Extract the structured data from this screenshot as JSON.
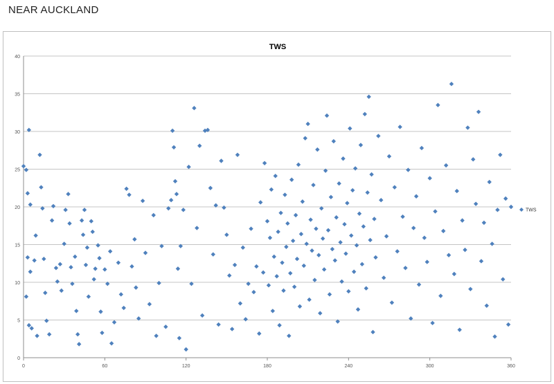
{
  "page": {
    "title": "NEAR AUCKLAND"
  },
  "chart_data": {
    "type": "scatter",
    "title": "TWS",
    "xlabel": "",
    "ylabel": "",
    "xlim": [
      0,
      360
    ],
    "ylim": [
      0,
      40
    ],
    "xticks": [
      0,
      60,
      120,
      180,
      240,
      300,
      360
    ],
    "yticks": [
      0,
      5,
      10,
      15,
      20,
      25,
      30,
      35,
      40
    ],
    "grid": "horizontal",
    "legend": "right",
    "marker": "diamond",
    "series_color": "#4f81bd",
    "series": [
      {
        "name": "TWS",
        "points": [
          [
            0,
            25.4
          ],
          [
            2,
            24.9
          ],
          [
            3,
            21.8
          ],
          [
            4,
            30.2
          ],
          [
            5,
            20.3
          ],
          [
            3,
            13.3
          ],
          [
            2,
            8.1
          ],
          [
            4,
            4.3
          ],
          [
            6,
            3.9
          ],
          [
            5,
            11.4
          ],
          [
            8,
            12.9
          ],
          [
            9,
            16.2
          ],
          [
            12,
            26.9
          ],
          [
            13,
            22.6
          ],
          [
            14,
            19.8
          ],
          [
            15,
            13.1
          ],
          [
            16,
            8.6
          ],
          [
            17,
            4.9
          ],
          [
            19,
            3.1
          ],
          [
            10,
            2.9
          ],
          [
            21,
            18.2
          ],
          [
            22,
            20.1
          ],
          [
            24,
            11.9
          ],
          [
            25,
            10.1
          ],
          [
            27,
            12.4
          ],
          [
            28,
            8.9
          ],
          [
            30,
            15.1
          ],
          [
            31,
            19.6
          ],
          [
            33,
            21.7
          ],
          [
            34,
            17.8
          ],
          [
            35,
            12.0
          ],
          [
            36,
            9.8
          ],
          [
            38,
            13.4
          ],
          [
            39,
            6.2
          ],
          [
            40,
            3.1
          ],
          [
            41,
            1.8
          ],
          [
            43,
            18.2
          ],
          [
            44,
            16.3
          ],
          [
            45,
            19.6
          ],
          [
            46,
            12.3
          ],
          [
            47,
            14.6
          ],
          [
            48,
            8.1
          ],
          [
            50,
            18.1
          ],
          [
            51,
            16.7
          ],
          [
            52,
            10.4
          ],
          [
            53,
            11.8
          ],
          [
            55,
            14.9
          ],
          [
            56,
            13.2
          ],
          [
            57,
            6.1
          ],
          [
            58,
            3.3
          ],
          [
            60,
            11.7
          ],
          [
            62,
            9.8
          ],
          [
            64,
            14.1
          ],
          [
            65,
            1.9
          ],
          [
            67,
            4.7
          ],
          [
            70,
            12.6
          ],
          [
            72,
            8.4
          ],
          [
            74,
            6.6
          ],
          [
            76,
            22.4
          ],
          [
            78,
            21.6
          ],
          [
            80,
            12.1
          ],
          [
            82,
            15.7
          ],
          [
            83,
            9.3
          ],
          [
            85,
            5.2
          ],
          [
            88,
            20.8
          ],
          [
            90,
            13.9
          ],
          [
            93,
            7.1
          ],
          [
            96,
            18.9
          ],
          [
            98,
            2.9
          ],
          [
            100,
            9.9
          ],
          [
            102,
            14.8
          ],
          [
            105,
            4.1
          ],
          [
            107,
            19.8
          ],
          [
            109,
            20.9
          ],
          [
            110,
            30.1
          ],
          [
            111,
            27.9
          ],
          [
            112,
            23.4
          ],
          [
            113,
            21.7
          ],
          [
            114,
            11.8
          ],
          [
            115,
            2.6
          ],
          [
            116,
            14.8
          ],
          [
            118,
            19.6
          ],
          [
            120,
            1.1
          ],
          [
            122,
            25.3
          ],
          [
            124,
            9.8
          ],
          [
            126,
            33.1
          ],
          [
            128,
            17.2
          ],
          [
            130,
            28.1
          ],
          [
            132,
            5.6
          ],
          [
            134,
            30.1
          ],
          [
            136,
            30.2
          ],
          [
            138,
            22.5
          ],
          [
            140,
            13.7
          ],
          [
            142,
            20.2
          ],
          [
            144,
            4.4
          ],
          [
            146,
            26.1
          ],
          [
            148,
            19.9
          ],
          [
            150,
            16.3
          ],
          [
            152,
            10.9
          ],
          [
            154,
            3.8
          ],
          [
            156,
            12.3
          ],
          [
            158,
            26.9
          ],
          [
            160,
            7.2
          ],
          [
            162,
            14.6
          ],
          [
            164,
            5.1
          ],
          [
            166,
            9.8
          ],
          [
            168,
            17.1
          ],
          [
            170,
            8.7
          ],
          [
            172,
            12.1
          ],
          [
            174,
            3.2
          ],
          [
            175,
            20.6
          ],
          [
            177,
            11.3
          ],
          [
            178,
            25.8
          ],
          [
            180,
            18.1
          ],
          [
            181,
            9.6
          ],
          [
            182,
            15.9
          ],
          [
            183,
            22.3
          ],
          [
            184,
            6.2
          ],
          [
            185,
            13.4
          ],
          [
            186,
            24.1
          ],
          [
            187,
            10.8
          ],
          [
            188,
            16.7
          ],
          [
            189,
            4.3
          ],
          [
            190,
            19.2
          ],
          [
            191,
            12.6
          ],
          [
            192,
            8.9
          ],
          [
            193,
            21.6
          ],
          [
            194,
            14.7
          ],
          [
            195,
            17.8
          ],
          [
            196,
            2.9
          ],
          [
            197,
            11.2
          ],
          [
            198,
            23.6
          ],
          [
            199,
            15.5
          ],
          [
            200,
            9.4
          ],
          [
            201,
            18.9
          ],
          [
            202,
            13.1
          ],
          [
            203,
            25.6
          ],
          [
            204,
            6.8
          ],
          [
            205,
            16.4
          ],
          [
            206,
            20.7
          ],
          [
            207,
            12.2
          ],
          [
            208,
            29.1
          ],
          [
            209,
            15.1
          ],
          [
            210,
            31.0
          ],
          [
            211,
            7.7
          ],
          [
            212,
            18.3
          ],
          [
            213,
            14.2
          ],
          [
            214,
            22.9
          ],
          [
            215,
            10.3
          ],
          [
            216,
            17.1
          ],
          [
            217,
            27.6
          ],
          [
            218,
            13.6
          ],
          [
            219,
            5.9
          ],
          [
            220,
            19.8
          ],
          [
            221,
            15.8
          ],
          [
            222,
            11.7
          ],
          [
            223,
            24.8
          ],
          [
            224,
            32.1
          ],
          [
            225,
            16.9
          ],
          [
            226,
            8.4
          ],
          [
            227,
            21.3
          ],
          [
            228,
            14.4
          ],
          [
            229,
            28.7
          ],
          [
            230,
            12.9
          ],
          [
            231,
            18.6
          ],
          [
            232,
            4.8
          ],
          [
            233,
            23.1
          ],
          [
            234,
            15.3
          ],
          [
            235,
            10.1
          ],
          [
            236,
            26.4
          ],
          [
            237,
            17.7
          ],
          [
            238,
            13.8
          ],
          [
            239,
            20.5
          ],
          [
            240,
            8.8
          ],
          [
            241,
            30.4
          ],
          [
            242,
            16.2
          ],
          [
            243,
            22.2
          ],
          [
            244,
            11.4
          ],
          [
            245,
            25.1
          ],
          [
            246,
            14.9
          ],
          [
            247,
            6.4
          ],
          [
            248,
            19.1
          ],
          [
            249,
            28.2
          ],
          [
            250,
            12.4
          ],
          [
            251,
            17.4
          ],
          [
            252,
            32.3
          ],
          [
            253,
            9.2
          ],
          [
            254,
            21.9
          ],
          [
            255,
            34.6
          ],
          [
            256,
            15.6
          ],
          [
            257,
            24.3
          ],
          [
            258,
            3.4
          ],
          [
            259,
            18.4
          ],
          [
            260,
            13.3
          ],
          [
            262,
            29.4
          ],
          [
            264,
            20.9
          ],
          [
            266,
            10.6
          ],
          [
            268,
            16.1
          ],
          [
            270,
            26.7
          ],
          [
            272,
            7.3
          ],
          [
            274,
            22.6
          ],
          [
            276,
            14.1
          ],
          [
            278,
            30.6
          ],
          [
            280,
            18.7
          ],
          [
            282,
            11.9
          ],
          [
            284,
            24.9
          ],
          [
            286,
            5.2
          ],
          [
            288,
            17.2
          ],
          [
            290,
            21.4
          ],
          [
            292,
            9.7
          ],
          [
            294,
            27.8
          ],
          [
            296,
            15.9
          ],
          [
            298,
            12.7
          ],
          [
            300,
            23.8
          ],
          [
            302,
            4.6
          ],
          [
            304,
            19.4
          ],
          [
            306,
            33.5
          ],
          [
            308,
            8.2
          ],
          [
            310,
            16.8
          ],
          [
            312,
            25.5
          ],
          [
            314,
            13.6
          ],
          [
            316,
            36.3
          ],
          [
            318,
            11.1
          ],
          [
            320,
            22.1
          ],
          [
            322,
            3.7
          ],
          [
            324,
            18.2
          ],
          [
            326,
            14.3
          ],
          [
            328,
            30.5
          ],
          [
            330,
            9.1
          ],
          [
            332,
            26.3
          ],
          [
            334,
            20.4
          ],
          [
            336,
            32.6
          ],
          [
            338,
            12.8
          ],
          [
            340,
            17.9
          ],
          [
            342,
            6.9
          ],
          [
            344,
            23.3
          ],
          [
            346,
            15.1
          ],
          [
            348,
            2.8
          ],
          [
            350,
            19.6
          ],
          [
            352,
            26.9
          ],
          [
            354,
            10.4
          ],
          [
            356,
            21.1
          ],
          [
            358,
            4.4
          ],
          [
            360,
            20.0
          ]
        ]
      }
    ]
  }
}
